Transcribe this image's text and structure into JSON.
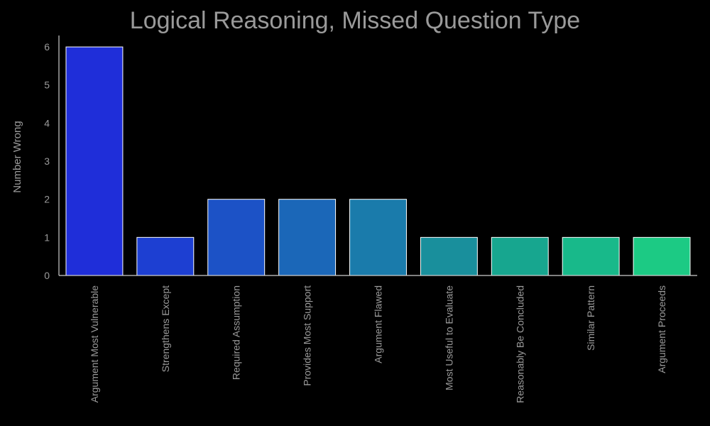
{
  "chart_data": {
    "type": "bar",
    "title": "Logical Reasoning, Missed Question Type",
    "xlabel": "",
    "ylabel": "Number Wrong",
    "categories": [
      "Argument Most Vulnerable",
      "Strengthens Except",
      "Required Assumption",
      "Provides Most Support",
      "Argument Flawed",
      "Most Useful to Evaluate",
      "Reasonably Be Concluded",
      "Similar Pattern",
      "Argument Proceeds"
    ],
    "values": [
      6,
      1,
      2,
      2,
      2,
      1,
      1,
      1,
      1
    ],
    "bar_colors": [
      "#1f2ed9",
      "#1d3fd2",
      "#1c52c6",
      "#1b67b8",
      "#1a7bab",
      "#198f9c",
      "#17a68f",
      "#18b98a",
      "#1cca84"
    ],
    "ylim": [
      0,
      6.3
    ],
    "yticks": [
      0,
      1,
      2,
      3,
      4,
      5,
      6
    ],
    "grid": false,
    "legend": "none",
    "background": "#000000",
    "text_color": "#9a9a9a",
    "axis_color": "#cccccc",
    "bar_edge_color": "#ffffff"
  }
}
